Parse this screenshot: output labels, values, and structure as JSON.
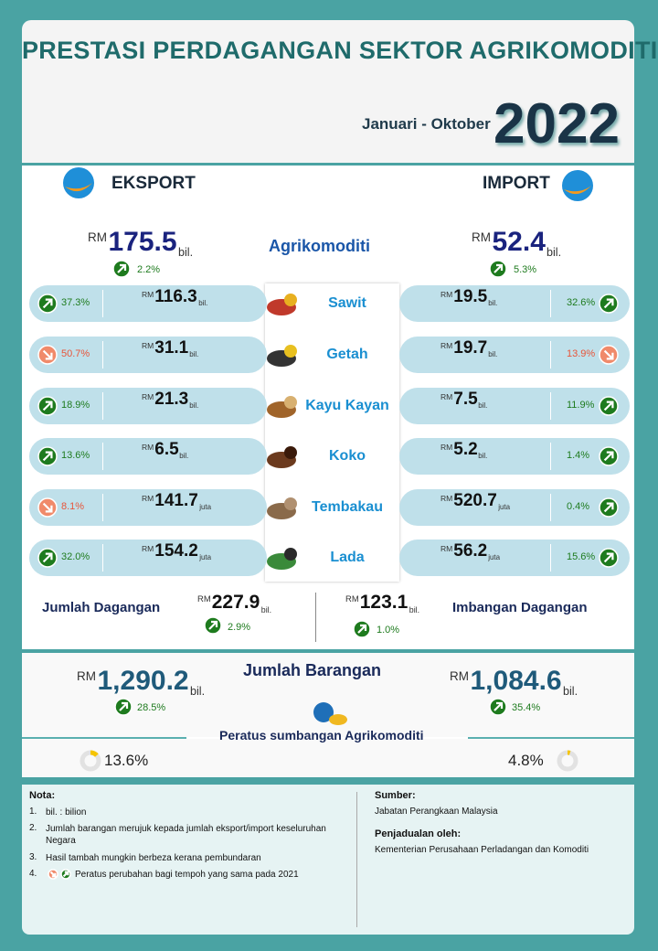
{
  "header": {
    "title": "PRESTASI PERDAGANGAN SEKTOR AGRIKOMODITI",
    "period": "Januari - Oktober",
    "year": "2022"
  },
  "export": {
    "label": "EKSPORT",
    "prefix": "RM",
    "value": "175.5",
    "unit": "bil.",
    "change": "2.2%",
    "trend": "up"
  },
  "import": {
    "label": "IMPORT",
    "prefix": "RM",
    "value": "52.4",
    "unit": "bil.",
    "change": "5.3%",
    "trend": "up"
  },
  "agri_label": "Agrikomoditi",
  "rows": [
    {
      "name": "Sawit",
      "export": {
        "prefix": "RM",
        "value": "116.3",
        "unit": "bil.",
        "change": "37.3%",
        "trend": "up"
      },
      "import": {
        "prefix": "RM",
        "value": "19.5",
        "unit": "bil.",
        "change": "32.6%",
        "trend": "up"
      }
    },
    {
      "name": "Getah",
      "export": {
        "prefix": "RM",
        "value": "31.1",
        "unit": "bil.",
        "change": "50.7%",
        "trend": "down"
      },
      "import": {
        "prefix": "RM",
        "value": "19.7",
        "unit": "bil.",
        "change": "13.9%",
        "trend": "down"
      }
    },
    {
      "name": "Kayu Kayan",
      "export": {
        "prefix": "RM",
        "value": "21.3",
        "unit": "bil.",
        "change": "18.9%",
        "trend": "up"
      },
      "import": {
        "prefix": "RM",
        "value": "7.5",
        "unit": "bil.",
        "change": "11.9%",
        "trend": "up"
      }
    },
    {
      "name": "Koko",
      "export": {
        "prefix": "RM",
        "value": "6.5",
        "unit": "bil.",
        "change": "13.6%",
        "trend": "up"
      },
      "import": {
        "prefix": "RM",
        "value": "5.2",
        "unit": "bil.",
        "change": "1.4%",
        "trend": "up"
      }
    },
    {
      "name": "Tembakau",
      "export": {
        "prefix": "RM",
        "value": "141.7",
        "unit": "juta",
        "change": "8.1%",
        "trend": "down"
      },
      "import": {
        "prefix": "RM",
        "value": "520.7",
        "unit": "juta",
        "change": "0.4%",
        "trend": "up"
      }
    },
    {
      "name": "Lada",
      "export": {
        "prefix": "RM",
        "value": "154.2",
        "unit": "juta",
        "change": "32.0%",
        "trend": "up"
      },
      "import": {
        "prefix": "RM",
        "value": "56.2",
        "unit": "juta",
        "change": "15.6%",
        "trend": "up"
      }
    }
  ],
  "totals": {
    "trade": {
      "label": "Jumlah Dagangan",
      "prefix": "RM",
      "value": "227.9",
      "unit": "bil.",
      "change": "2.9%",
      "trend": "up"
    },
    "balance": {
      "label": "Imbangan Dagangan",
      "prefix": "RM",
      "value": "123.1",
      "unit": "bil.",
      "change": "1.0%",
      "trend": "up"
    }
  },
  "goods": {
    "title": "Jumlah Barangan",
    "export": {
      "prefix": "RM",
      "value": "1,290.2",
      "unit": "bil.",
      "change": "28.5%",
      "trend": "up"
    },
    "import": {
      "prefix": "RM",
      "value": "1,084.6",
      "unit": "bil.",
      "change": "35.4%",
      "trend": "up"
    },
    "share_title": "Peratus sumbangan Agrikomoditi",
    "export_share": {
      "value": 13.6,
      "label": "13.6%"
    },
    "import_share": {
      "value": 4.8,
      "label": "4.8%"
    }
  },
  "notes": {
    "title": "Nota:",
    "items": [
      {
        "no": "1.",
        "text": "bil. : bilion"
      },
      {
        "no": "2.",
        "text": "Jumlah barangan merujuk kepada jumlah eksport/import keseluruhan Negara"
      },
      {
        "no": "3.",
        "text": "Hasil tambah mungkin berbeza kerana pembundaran"
      },
      {
        "no": "4.",
        "text": "Peratus perubahan bagi tempoh yang sama pada 2021"
      }
    ],
    "source_title": "Sumber:",
    "source": "Jabatan Perangkaan Malaysia",
    "compiled_title": "Penjadualan oleh:",
    "compiled": "Kementerian Perusahaan Perladangan dan Komoditi"
  }
}
